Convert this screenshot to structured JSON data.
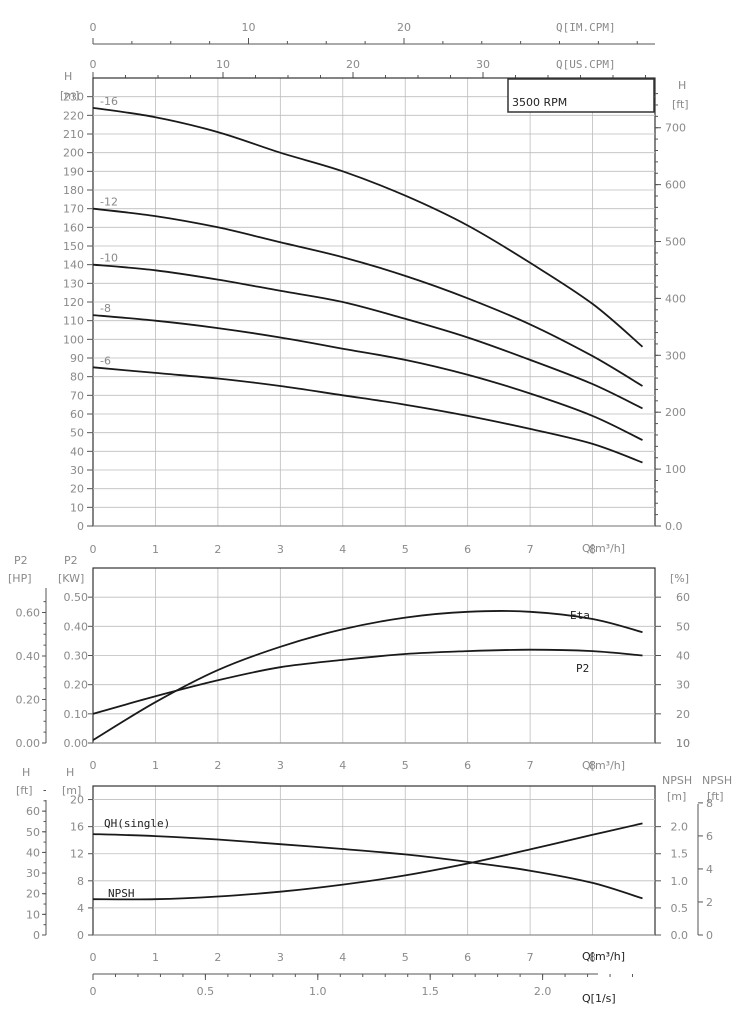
{
  "top_axes": {
    "im_label": "Q[IM.CPM]",
    "im_ticks": [
      "0",
      "10",
      "20"
    ],
    "us_label": "Q[US.CPM]",
    "us_ticks": [
      "0",
      "10",
      "20",
      "30"
    ]
  },
  "rpm_label": "3500 RPM",
  "panels": {
    "head": {
      "ylabel_left_1": "H",
      "ylabel_left_2": "[m]",
      "ylabel_right_1": "H",
      "ylabel_right_2": "[ft]",
      "xlabel": "Q[m³/h]"
    },
    "power": {
      "ylabel_hp_1": "P2",
      "ylabel_hp_2": "[HP]",
      "ylabel_kw_1": "P2",
      "ylabel_kw_2": "[KW]",
      "ylabel_right": "[%]",
      "xlabel": "Q[m³/h]",
      "label_eta": "Eta",
      "label_p2": "P2"
    },
    "npsh": {
      "ylabel_ft_1": "H",
      "ylabel_ft_2": "[ft]",
      "ylabel_m_1": "H",
      "ylabel_m_2": "[m]",
      "ylabel_npsh_m_1": "NPSH",
      "ylabel_npsh_m_2": "[m]",
      "ylabel_npsh_ft_1": "NPSH",
      "ylabel_npsh_ft_2": "[ft]",
      "xlabel": "Q[m³/h]",
      "xlabel_ls": "Q[1/s]",
      "label_qh": "QH(single)",
      "label_npsh": "NPSH"
    }
  },
  "chart_data": [
    {
      "type": "line",
      "id": "head",
      "xlim": [
        0,
        9
      ],
      "ylim": [
        0,
        240
      ],
      "x_ticks": [
        0,
        1,
        2,
        3,
        4,
        5,
        6,
        7,
        8
      ],
      "y_ticks": [
        0,
        10,
        20,
        30,
        40,
        50,
        60,
        70,
        80,
        90,
        100,
        110,
        120,
        130,
        140,
        150,
        160,
        170,
        180,
        190,
        200,
        210,
        220,
        230
      ],
      "y2_ticks": [
        "0.0",
        "100",
        "200",
        "300",
        "400",
        "500",
        "600",
        "700"
      ],
      "y2_values": [
        0,
        100,
        200,
        300,
        400,
        500,
        600,
        700
      ],
      "xlabel": "Q[m³/h]",
      "ylabel": "H [m]",
      "series": [
        {
          "name": "-16",
          "x": [
            0,
            1,
            2,
            3,
            4,
            5,
            6,
            7,
            8,
            8.8
          ],
          "y": [
            224,
            219,
            211,
            200,
            190,
            177,
            161,
            141,
            119,
            96
          ]
        },
        {
          "name": "-12",
          "x": [
            0,
            1,
            2,
            3,
            4,
            5,
            6,
            7,
            8,
            8.8
          ],
          "y": [
            170,
            166,
            160,
            152,
            144,
            134,
            122,
            108,
            91,
            75
          ]
        },
        {
          "name": "-10",
          "x": [
            0,
            1,
            2,
            3,
            4,
            5,
            6,
            7,
            8,
            8.8
          ],
          "y": [
            140,
            137,
            132,
            126,
            120,
            111,
            101,
            89,
            76,
            63
          ]
        },
        {
          "name": "-8",
          "x": [
            0,
            1,
            2,
            3,
            4,
            5,
            6,
            7,
            8,
            8.8
          ],
          "y": [
            113,
            110,
            106,
            101,
            95,
            89,
            81,
            71,
            59,
            46
          ]
        },
        {
          "name": "-6",
          "x": [
            0,
            1,
            2,
            3,
            4,
            5,
            6,
            7,
            8,
            8.8
          ],
          "y": [
            85,
            82,
            79,
            75,
            70,
            65,
            59,
            52,
            44,
            34
          ]
        }
      ]
    },
    {
      "type": "line",
      "id": "power",
      "xlim": [
        0,
        9
      ],
      "ylim": [
        0,
        0.6
      ],
      "x_ticks": [
        0,
        1,
        2,
        3,
        4,
        5,
        6,
        7,
        8
      ],
      "y_ticks": [
        "0.00",
        "0.10",
        "0.20",
        "0.30",
        "0.40",
        "0.50"
      ],
      "y_tick_values": [
        0,
        0.1,
        0.2,
        0.3,
        0.4,
        0.5
      ],
      "hp_ticks": [
        "0.00",
        "0.20",
        "0.40",
        "0.60"
      ],
      "hp_values": [
        0,
        0.2,
        0.4,
        0.6
      ],
      "pct_ticks": [
        "10",
        "20",
        "30",
        "40",
        "50",
        "60"
      ],
      "pct_values": [
        10,
        20,
        30,
        40,
        50,
        60
      ],
      "pct_lim": [
        10,
        70
      ],
      "series": [
        {
          "name": "Eta",
          "axis": "pct",
          "x": [
            0,
            1,
            2,
            3,
            4,
            5,
            6,
            7,
            8,
            8.8
          ],
          "y": [
            11,
            24,
            35,
            43,
            49,
            53,
            55,
            55,
            52.5,
            48
          ]
        },
        {
          "name": "P2",
          "axis": "kw",
          "x": [
            0,
            1,
            2,
            3,
            4,
            5,
            6,
            7,
            8,
            8.8
          ],
          "y": [
            0.1,
            0.16,
            0.215,
            0.26,
            0.285,
            0.305,
            0.315,
            0.32,
            0.315,
            0.3
          ]
        }
      ]
    },
    {
      "type": "line",
      "id": "npsh",
      "xlim": [
        0,
        9
      ],
      "ylim": [
        0,
        22
      ],
      "x_ticks": [
        0,
        1,
        2,
        3,
        4,
        5,
        6,
        7,
        8
      ],
      "y_ticks": [
        0,
        4,
        8,
        12,
        16,
        20
      ],
      "ft_ticks": [
        0,
        10,
        20,
        30,
        40,
        50,
        60
      ],
      "npsh_m_ticks": [
        "0.0",
        "0.5",
        "1.0",
        "1.5",
        "2.0"
      ],
      "npsh_m_values": [
        0,
        0.5,
        1.0,
        1.5,
        2.0
      ],
      "npsh_ft_ticks": [
        0,
        2,
        4,
        6,
        8
      ],
      "npsh_lim": [
        0,
        2.75
      ],
      "ls_ticks": [
        "0",
        "0.5",
        "1.0",
        "1.5",
        "2.0"
      ],
      "ls_values": [
        0,
        0.5,
        1.0,
        1.5,
        2.0
      ],
      "series": [
        {
          "name": "QH(single)",
          "axis": "m",
          "x": [
            0,
            1,
            2,
            3,
            4,
            5,
            6,
            7,
            8,
            8.8
          ],
          "y": [
            14.9,
            14.6,
            14.1,
            13.4,
            12.7,
            11.9,
            10.8,
            9.5,
            7.7,
            5.4
          ]
        },
        {
          "name": "NPSH",
          "axis": "npsh",
          "x": [
            0,
            1,
            2,
            3,
            4,
            5,
            6,
            7,
            8,
            8.8
          ],
          "y": [
            0.66,
            0.66,
            0.71,
            0.8,
            0.93,
            1.1,
            1.32,
            1.58,
            1.85,
            2.06
          ]
        }
      ]
    }
  ]
}
